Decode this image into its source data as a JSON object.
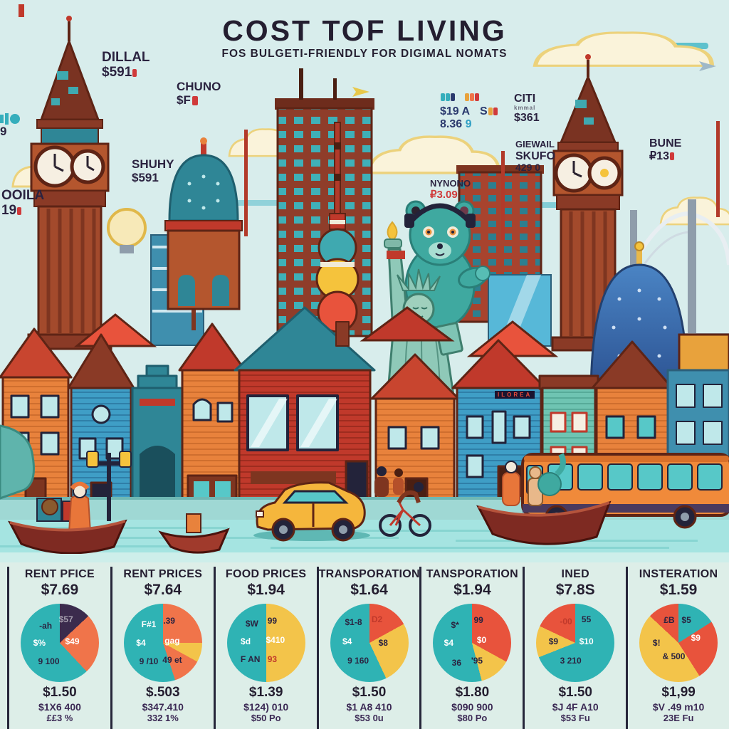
{
  "poster": {
    "title": "COST TOF LIVING",
    "subtitle": "FOS BULGETI-FRIENDLY FOR DIGIMAL NOMATS"
  },
  "palette": {
    "teal": "#2fb3b4",
    "red": "#e8533c",
    "orange": "#f0744a",
    "yellow": "#f3c44a",
    "purple": "#3b2b4d",
    "ink": "#241e30"
  },
  "skyline": {
    "dillal": {
      "label": "DILLAL",
      "value": "$591"
    },
    "chuno": {
      "label": "CHUNO",
      "value": "$F"
    },
    "shuhy": {
      "label": "SHUHY",
      "value": "$591"
    },
    "ooila": {
      "label": "OOILA",
      "value": "19"
    },
    "ticker": {
      "value": "9"
    },
    "hino": {
      "row1": "$19 A",
      "row1b": "S",
      "row2": "8.36",
      "row2b": "9"
    },
    "citi": {
      "label": "CITI",
      "sub": "kmmal",
      "value": "$361"
    },
    "giewail": {
      "label": "GIEWAIL",
      "label2": "SKUFO",
      "value": "429 0"
    },
    "nynono": {
      "label": "NYNONO",
      "value": "₽3.09"
    },
    "bune": {
      "label": "BUNE",
      "value": "₽13"
    },
    "house_sign": "ILOREA"
  },
  "chart_data": [
    {
      "type": "pie",
      "title": "RENT PFICE",
      "price": "$7.69",
      "slices": [
        {
          "name": "segment-1",
          "pct": 13,
          "color": "#3b2b4d"
        },
        {
          "name": "segment-2",
          "pct": 25,
          "color": "#f0744a"
        },
        {
          "name": "segment-3",
          "pct": 62,
          "color": "#2fb3b4"
        }
      ],
      "inner_labels": [
        {
          "t": "-ah",
          "x": 32,
          "y": 28,
          "c": "dk"
        },
        {
          "t": "$57",
          "x": 58,
          "y": 20,
          "c": "mut"
        },
        {
          "t": "$%",
          "x": 24,
          "y": 50,
          "c": "wh"
        },
        {
          "t": "$49",
          "x": 66,
          "y": 48,
          "c": "wh"
        },
        {
          "t": "9 100",
          "x": 36,
          "y": 74,
          "c": "dk"
        }
      ],
      "footer": [
        "$1.50",
        "$1X6 400",
        "££3 %"
      ]
    },
    {
      "type": "pie",
      "title": "RENT PRICES",
      "price": "$7.64",
      "slices": [
        {
          "name": "segment-1",
          "pct": 25,
          "color": "#f0744a"
        },
        {
          "name": "segment-2",
          "pct": 8,
          "color": "#f3c44a"
        },
        {
          "name": "segment-3",
          "pct": 12,
          "color": "#f0744a"
        },
        {
          "name": "segment-4",
          "pct": 55,
          "color": "#2fb3b4"
        }
      ],
      "inner_labels": [
        {
          "t": "F#1",
          "x": 32,
          "y": 26,
          "c": "wh"
        },
        {
          "t": ".39",
          "x": 58,
          "y": 22,
          "c": "dk"
        },
        {
          "t": "$4",
          "x": 22,
          "y": 50,
          "c": "wh"
        },
        {
          "t": "gag",
          "x": 62,
          "y": 47,
          "c": "wh"
        },
        {
          "t": "9 /10",
          "x": 32,
          "y": 74,
          "c": "dk"
        },
        {
          "t": "49 et",
          "x": 62,
          "y": 72,
          "c": "dk"
        }
      ],
      "footer": [
        "$.503",
        "$347.410",
        "332 1%"
      ]
    },
    {
      "type": "pie",
      "title": "FOOD PRICES",
      "price": "$1.94",
      "slices": [
        {
          "name": "segment-1",
          "pct": 50,
          "color": "#f3c44a"
        },
        {
          "name": "segment-2",
          "pct": 50,
          "color": "#2fb3b4"
        }
      ],
      "inner_labels": [
        {
          "t": "$W",
          "x": 32,
          "y": 25,
          "c": "dk"
        },
        {
          "t": "99",
          "x": 58,
          "y": 22,
          "c": "dk"
        },
        {
          "t": "$d",
          "x": 24,
          "y": 48,
          "c": "wh"
        },
        {
          "t": "$410",
          "x": 62,
          "y": 46,
          "c": "wh"
        },
        {
          "t": "F AN",
          "x": 30,
          "y": 71,
          "c": "dk"
        },
        {
          "t": "93",
          "x": 58,
          "y": 71,
          "c": "rd"
        }
      ],
      "footer": [
        "$1.39",
        "$124) 010",
        "$50 Po"
      ]
    },
    {
      "type": "pie",
      "title": "TRANSPORATION",
      "price": "$1.64",
      "slices": [
        {
          "name": "segment-1",
          "pct": 17,
          "color": "#e8533c"
        },
        {
          "name": "segment-2",
          "pct": 26,
          "color": "#f3c44a"
        },
        {
          "name": "segment-3",
          "pct": 57,
          "color": "#2fb3b4"
        }
      ],
      "inner_labels": [
        {
          "t": "$1-8",
          "x": 30,
          "y": 24,
          "c": "dk"
        },
        {
          "t": "D2",
          "x": 60,
          "y": 20,
          "c": "rd"
        },
        {
          "t": "$4",
          "x": 22,
          "y": 48,
          "c": "wh"
        },
        {
          "t": "$8",
          "x": 68,
          "y": 50,
          "c": "dk"
        },
        {
          "t": "9 160",
          "x": 36,
          "y": 73,
          "c": "dk"
        }
      ],
      "footer": [
        "$1.50",
        "$1 A8 410",
        "$53 0u"
      ]
    },
    {
      "type": "pie",
      "title": "TANSPORATION",
      "price": "$1.94",
      "slices": [
        {
          "name": "segment-1",
          "pct": 33,
          "color": "#e8533c"
        },
        {
          "name": "segment-2",
          "pct": 13,
          "color": "#f3c44a"
        },
        {
          "name": "segment-3",
          "pct": 54,
          "color": "#2fb3b4"
        }
      ],
      "inner_labels": [
        {
          "t": "$*",
          "x": 28,
          "y": 27,
          "c": "dk"
        },
        {
          "t": "99",
          "x": 58,
          "y": 21,
          "c": "dk"
        },
        {
          "t": "$4",
          "x": 20,
          "y": 50,
          "c": "wh"
        },
        {
          "t": "$0",
          "x": 62,
          "y": 46,
          "c": "wh"
        },
        {
          "t": "36",
          "x": 30,
          "y": 75,
          "c": "dk"
        },
        {
          "t": "'95",
          "x": 56,
          "y": 73,
          "c": "dk"
        }
      ],
      "footer": [
        "$1.80",
        "$090 900",
        "$80 Po"
      ]
    },
    {
      "type": "pie",
      "title": "INED",
      "price": "$7.8S",
      "slices": [
        {
          "name": "segment-1",
          "pct": 69,
          "color": "#2fb3b4"
        },
        {
          "name": "segment-2",
          "pct": 13,
          "color": "#f3c44a"
        },
        {
          "name": "segment-3",
          "pct": 18,
          "color": "#e8533c"
        }
      ],
      "inner_labels": [
        {
          "t": "-00",
          "x": 38,
          "y": 23,
          "c": "rd"
        },
        {
          "t": "55",
          "x": 64,
          "y": 20,
          "c": "dk"
        },
        {
          "t": "$9",
          "x": 22,
          "y": 48,
          "c": "dk"
        },
        {
          "t": "$10",
          "x": 64,
          "y": 48,
          "c": "wh"
        },
        {
          "t": "3 210",
          "x": 44,
          "y": 73,
          "c": "dk"
        }
      ],
      "footer": [
        "$1.50",
        "$J 4F A10",
        "$53 Fu"
      ]
    },
    {
      "type": "pie",
      "title": "INSTERATION",
      "price": "$1.59",
      "slices": [
        {
          "name": "segment-1",
          "pct": 16,
          "color": "#2fb3b4"
        },
        {
          "name": "segment-2",
          "pct": 25,
          "color": "#e8533c"
        },
        {
          "name": "segment-3",
          "pct": 46,
          "color": "#f3c44a"
        },
        {
          "name": "segment-4",
          "pct": 13,
          "color": "#e8533c"
        }
      ],
      "inner_labels": [
        {
          "t": "£B",
          "x": 38,
          "y": 21,
          "c": "dk"
        },
        {
          "t": "$5",
          "x": 60,
          "y": 21,
          "c": "dk"
        },
        {
          "t": "$!",
          "x": 22,
          "y": 50,
          "c": "dk"
        },
        {
          "t": "$9",
          "x": 72,
          "y": 44,
          "c": "wh"
        },
        {
          "t": "& 500",
          "x": 44,
          "y": 67,
          "c": "dk"
        }
      ],
      "footer": [
        "$1,99",
        "$V .49 m10",
        "23E Fu"
      ]
    }
  ]
}
